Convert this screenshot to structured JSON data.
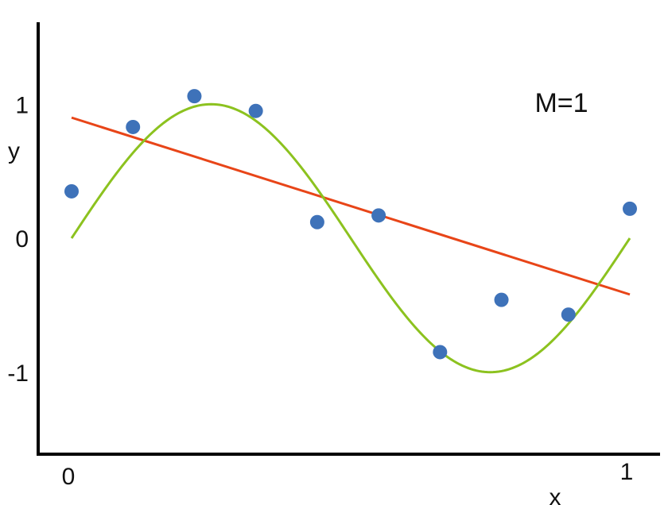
{
  "chart_data": {
    "type": "scatter",
    "title": "",
    "xlabel": "x",
    "ylabel": "y",
    "xlim": [
      0,
      1
    ],
    "ylim": [
      -1.6,
      1.6
    ],
    "grid": false,
    "legend": "none",
    "x_ticks": [
      {
        "value": 0,
        "label": "0"
      },
      {
        "value": 1,
        "label": "1"
      }
    ],
    "y_ticks": [
      {
        "value": 1,
        "label": "1"
      },
      {
        "value": 0,
        "label": "0"
      },
      {
        "value": -1,
        "label": "-1"
      }
    ],
    "annotation": {
      "text": "M=1",
      "x": 0.82,
      "y": 1.0
    },
    "series": [
      {
        "kind": "points",
        "color": "#3e72b9",
        "x": [
          0.0,
          0.11,
          0.22,
          0.33,
          0.44,
          0.55,
          0.66,
          0.77,
          0.89,
          1.0
        ],
        "y": [
          0.35,
          0.83,
          1.06,
          0.95,
          0.12,
          0.17,
          -0.85,
          -0.46,
          -0.57,
          0.22
        ]
      },
      {
        "kind": "line",
        "color": "#e84518",
        "x": [
          0.0,
          1.0
        ],
        "y": [
          0.9,
          -0.42
        ]
      },
      {
        "kind": "curve",
        "color": "#8cc21f",
        "function": "sin(2*pi*x)",
        "x_range": [
          0,
          1
        ]
      }
    ]
  }
}
